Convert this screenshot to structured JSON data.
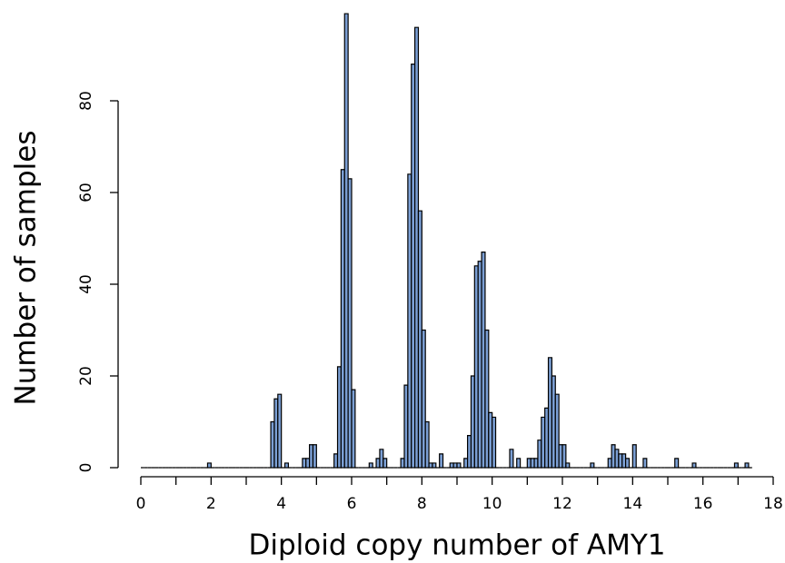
{
  "chart_data": {
    "type": "histogram",
    "xlabel": "Diploid copy number of AMY1",
    "ylabel": "Number of samples",
    "color": "#7b9fd4",
    "bins": [
      0,
      0.1,
      0.2,
      0.3,
      0.4,
      0.5,
      0.6,
      0.7,
      0.8,
      0.9,
      1,
      1.1,
      1.2,
      1.3,
      1.4,
      1.5,
      1.6,
      1.7,
      1.8,
      1.9,
      2,
      2.1,
      2.2,
      2.3,
      2.4,
      2.5,
      2.6,
      2.7,
      2.8,
      2.9,
      3,
      3.1,
      3.2,
      3.3,
      3.4,
      3.5,
      3.6,
      3.7,
      3.8,
      3.9,
      4,
      4.1,
      4.2,
      4.3,
      4.4,
      4.5,
      4.6,
      4.7,
      4.8,
      4.9,
      5,
      5.1,
      5.2,
      5.3,
      5.4,
      5.5,
      5.6,
      5.7,
      5.8,
      5.9,
      6,
      6.1,
      6.2,
      6.3,
      6.4,
      6.5,
      6.6,
      6.7,
      6.8,
      6.9,
      7,
      7.1,
      7.2,
      7.3,
      7.4,
      7.5,
      7.6,
      7.7,
      7.8,
      7.9,
      8,
      8.1,
      8.2,
      8.3,
      8.4,
      8.5,
      8.6,
      8.7,
      8.8,
      8.9,
      9,
      9.1,
      9.2,
      9.3,
      9.4,
      9.5,
      9.6,
      9.7,
      9.8,
      9.9,
      10,
      10.1,
      10.2,
      10.3,
      10.4,
      10.5,
      10.6,
      10.7,
      10.8,
      10.9,
      11,
      11.1,
      11.2,
      11.3,
      11.4,
      11.5,
      11.6,
      11.7,
      11.8,
      11.9,
      12,
      12.1,
      12.2,
      12.3,
      12.4,
      12.5,
      12.6,
      12.7,
      12.8,
      12.9,
      13,
      13.1,
      13.2,
      13.3,
      13.4,
      13.5,
      13.6,
      13.7,
      13.8,
      13.9,
      14,
      14.1,
      14.2,
      14.3,
      14.4,
      14.5,
      14.6,
      14.7,
      14.8,
      14.9,
      15,
      15.1,
      15.2,
      15.3,
      15.4,
      15.5,
      15.6,
      15.7,
      15.8,
      15.9,
      16,
      16.1,
      16.2,
      16.3,
      16.4,
      16.5,
      16.6,
      16.7,
      16.8,
      16.9,
      17,
      17.1,
      17.2,
      17.3,
      17.4
    ],
    "values": [
      0,
      0,
      0,
      0,
      0,
      0,
      0,
      0,
      0,
      0,
      0,
      0,
      0,
      0,
      0,
      0,
      0,
      0,
      0,
      1,
      0,
      0,
      0,
      0,
      0,
      0,
      0,
      0,
      0,
      0,
      0,
      0,
      0,
      0,
      0,
      0,
      0,
      10,
      15,
      16,
      0,
      1,
      0,
      0,
      0,
      0,
      2,
      2,
      5,
      5,
      0,
      0,
      0,
      0,
      0,
      3,
      22,
      65,
      99,
      63,
      17,
      0,
      0,
      0,
      0,
      1,
      0,
      2,
      4,
      2,
      0,
      0,
      0,
      0,
      2,
      18,
      64,
      88,
      96,
      56,
      30,
      10,
      1,
      1,
      0,
      3,
      0,
      0,
      1,
      1,
      1,
      0,
      2,
      7,
      20,
      44,
      45,
      47,
      30,
      12,
      11,
      0,
      0,
      0,
      0,
      4,
      0,
      2,
      0,
      0,
      2,
      2,
      2,
      6,
      11,
      13,
      24,
      20,
      16,
      5,
      5,
      1,
      0,
      0,
      0,
      0,
      0,
      0,
      1,
      0,
      0,
      0,
      0,
      2,
      5,
      4,
      3,
      3,
      2,
      0,
      5,
      0,
      0,
      2,
      0,
      0,
      0,
      0,
      0,
      0,
      0,
      0,
      2,
      0,
      0,
      0,
      0,
      1,
      0,
      0,
      0,
      0,
      0,
      0,
      0,
      0,
      0,
      0,
      0,
      1,
      0,
      0,
      1,
      0
    ],
    "xlim": [
      0,
      18
    ],
    "xticks": [
      0,
      2,
      4,
      6,
      8,
      10,
      12,
      14,
      16,
      18
    ],
    "xminor_ticks": [
      1,
      3,
      5,
      7,
      9,
      11,
      13,
      15,
      17
    ],
    "ylim": [
      0,
      100
    ],
    "yticks": [
      0,
      20,
      40,
      60,
      80
    ]
  }
}
